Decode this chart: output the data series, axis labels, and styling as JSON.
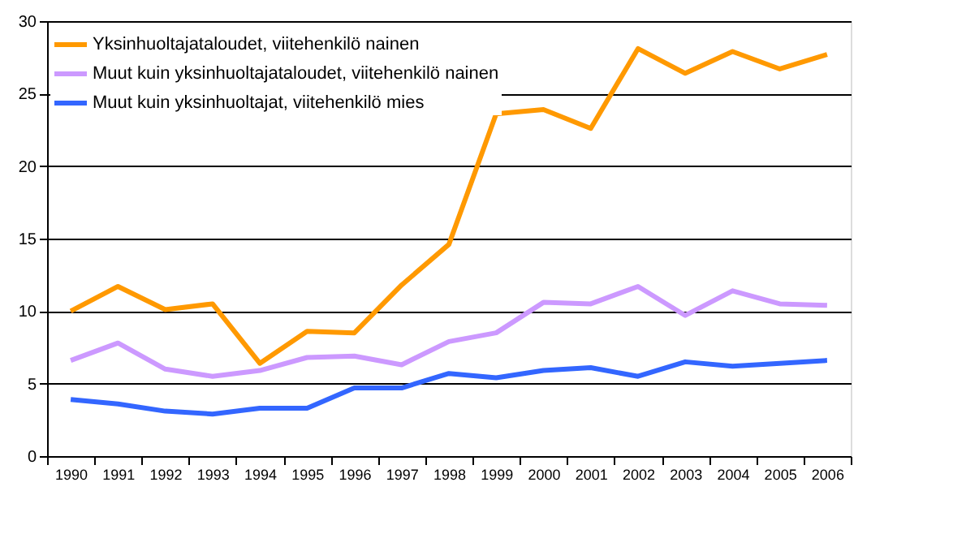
{
  "chart_data": {
    "type": "line",
    "categories": [
      "1990",
      "1991",
      "1992",
      "1993",
      "1994",
      "1995",
      "1996",
      "1997",
      "1998",
      "1999",
      "2000",
      "2001",
      "2002",
      "2003",
      "2004",
      "2005",
      "2006"
    ],
    "series": [
      {
        "name": "Yksinhuoltajataloudet, viitehenkilö nainen",
        "color": "#ff9900",
        "values": [
          10.0,
          11.7,
          10.1,
          10.5,
          6.4,
          8.6,
          8.5,
          11.8,
          14.6,
          23.6,
          23.9,
          22.6,
          28.1,
          26.4,
          27.9,
          26.7,
          27.7
        ]
      },
      {
        "name": "Muut kuin yksinhuoltajataloudet, viitehenkilö nainen",
        "color": "#cc99ff",
        "values": [
          6.6,
          7.8,
          6.0,
          5.5,
          5.9,
          6.8,
          6.9,
          6.3,
          7.9,
          8.5,
          10.6,
          10.5,
          11.7,
          9.7,
          11.4,
          10.5,
          10.4
        ]
      },
      {
        "name": "Muut kuin yksinhuoltajat, viitehenkilö mies",
        "color": "#3366ff",
        "values": [
          3.9,
          3.6,
          3.1,
          2.9,
          3.3,
          3.3,
          4.7,
          4.7,
          5.7,
          5.4,
          5.9,
          6.1,
          5.5,
          6.5,
          6.2,
          6.4,
          6.6
        ]
      }
    ],
    "ylim": [
      0,
      30
    ],
    "yticks": [
      0,
      5,
      10,
      15,
      20,
      25,
      30
    ],
    "grid": "y",
    "legend": "top left",
    "marker": "none",
    "line_style": "solid"
  }
}
